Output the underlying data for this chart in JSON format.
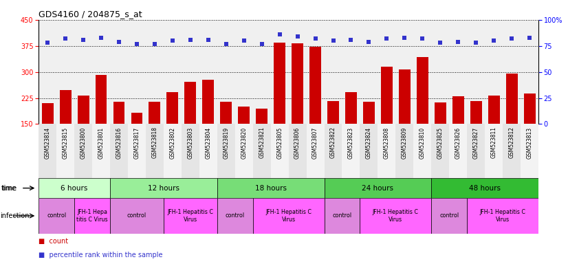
{
  "title": "GDS4160 / 204875_s_at",
  "samples": [
    "GSM523814",
    "GSM523815",
    "GSM523800",
    "GSM523801",
    "GSM523816",
    "GSM523817",
    "GSM523818",
    "GSM523802",
    "GSM523803",
    "GSM523804",
    "GSM523819",
    "GSM523820",
    "GSM523821",
    "GSM523805",
    "GSM523806",
    "GSM523807",
    "GSM523822",
    "GSM523823",
    "GSM523824",
    "GSM523808",
    "GSM523809",
    "GSM523810",
    "GSM523825",
    "GSM523826",
    "GSM523827",
    "GSM523811",
    "GSM523812",
    "GSM523813"
  ],
  "counts": [
    210,
    248,
    232,
    292,
    215,
    183,
    215,
    242,
    272,
    278,
    215,
    200,
    195,
    385,
    382,
    372,
    217,
    242,
    215,
    315,
    308,
    342,
    213,
    230,
    217,
    232,
    295,
    237
  ],
  "percentiles": [
    78,
    82,
    81,
    83,
    79,
    77,
    77,
    80,
    81,
    81,
    77,
    80,
    77,
    86,
    84,
    82,
    80,
    81,
    79,
    82,
    83,
    82,
    78,
    79,
    78,
    80,
    82,
    83
  ],
  "ylim_left": [
    150,
    450
  ],
  "yticks_left": [
    150,
    225,
    300,
    375,
    450
  ],
  "ylim_right": [
    0,
    100
  ],
  "yticks_right": [
    0,
    25,
    50,
    75,
    100
  ],
  "bar_color": "#cc0000",
  "dot_color": "#3333cc",
  "time_groups": [
    {
      "label": "6 hours",
      "start": 0,
      "end": 4,
      "color": "#ccffcc"
    },
    {
      "label": "12 hours",
      "start": 4,
      "end": 10,
      "color": "#99ee99"
    },
    {
      "label": "18 hours",
      "start": 10,
      "end": 16,
      "color": "#77dd77"
    },
    {
      "label": "24 hours",
      "start": 16,
      "end": 22,
      "color": "#55cc55"
    },
    {
      "label": "48 hours",
      "start": 22,
      "end": 28,
      "color": "#33bb33"
    }
  ],
  "infection_groups": [
    {
      "label": "control",
      "start": 0,
      "end": 2,
      "color": "#dd88dd"
    },
    {
      "label": "JFH-1 Hepa\ntitis C Virus",
      "start": 2,
      "end": 4,
      "color": "#ff66ff"
    },
    {
      "label": "control",
      "start": 4,
      "end": 7,
      "color": "#dd88dd"
    },
    {
      "label": "JFH-1 Hepatitis C\nVirus",
      "start": 7,
      "end": 10,
      "color": "#ff66ff"
    },
    {
      "label": "control",
      "start": 10,
      "end": 12,
      "color": "#dd88dd"
    },
    {
      "label": "JFH-1 Hepatitis C\nVirus",
      "start": 12,
      "end": 16,
      "color": "#ff66ff"
    },
    {
      "label": "control",
      "start": 16,
      "end": 18,
      "color": "#dd88dd"
    },
    {
      "label": "JFH-1 Hepatitis C\nVirus",
      "start": 18,
      "end": 22,
      "color": "#ff66ff"
    },
    {
      "label": "control",
      "start": 22,
      "end": 24,
      "color": "#dd88dd"
    },
    {
      "label": "JFH-1 Hepatitis C\nVirus",
      "start": 24,
      "end": 28,
      "color": "#ff66ff"
    }
  ],
  "legend_count_color": "#cc0000",
  "legend_percentile_color": "#3333cc",
  "bg_color": "#f0f0f0"
}
